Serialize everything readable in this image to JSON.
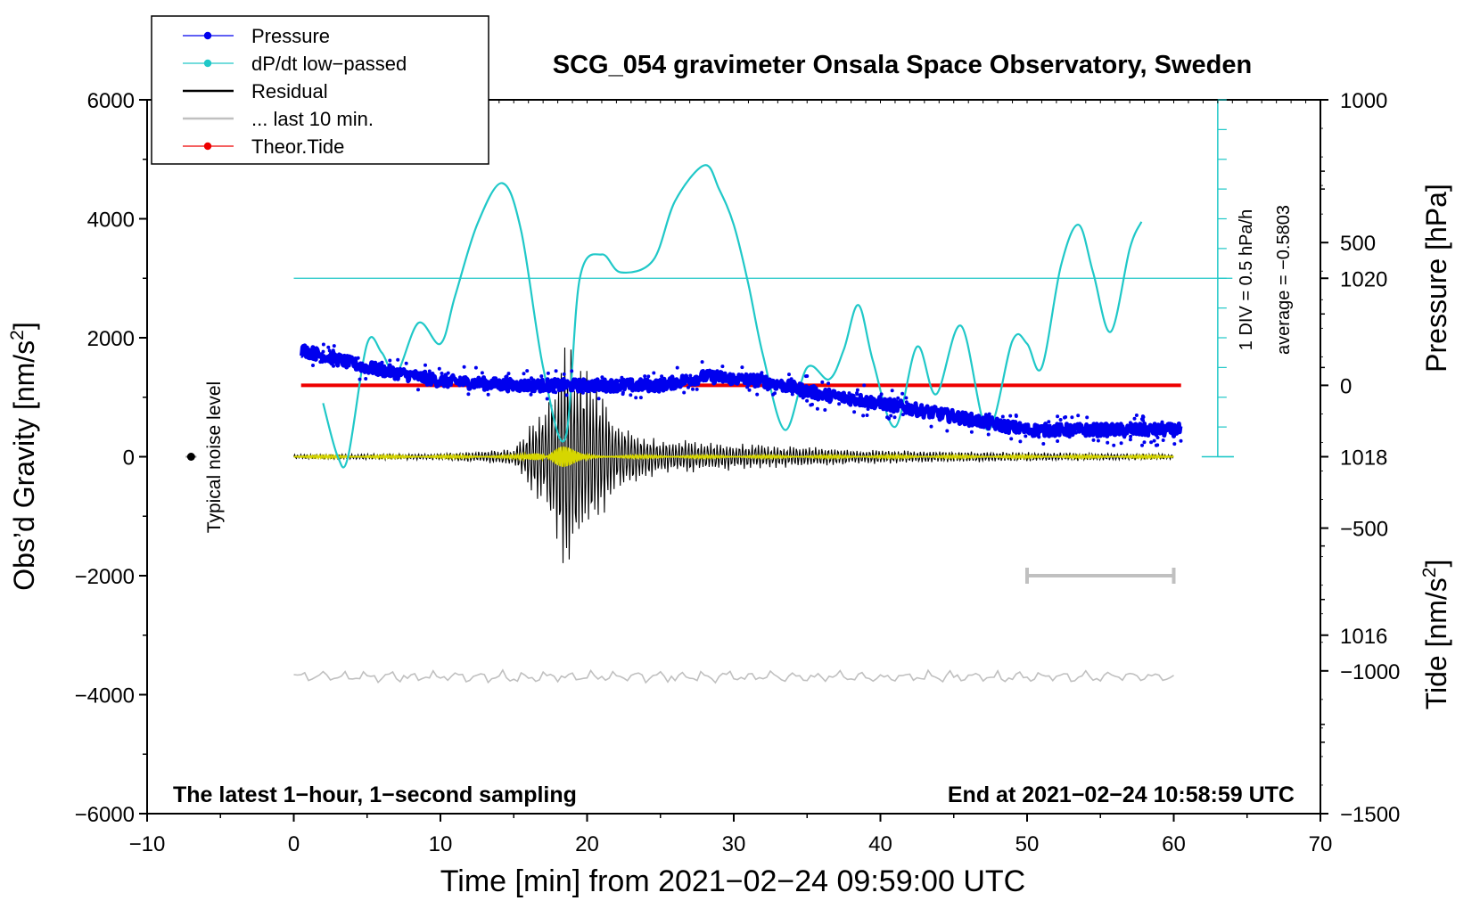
{
  "chart_data": {
    "type": "line",
    "title": "SCG_054 gravimeter Onsala Space Observatory, Sweden",
    "xlabel": "Time [min] from 2021−02−24 09:59:00 UTC",
    "ylabel_left": "Obs’d Gravity [nm/s²]",
    "ylabel_left_main": "Obs’d Gravity [nm/s",
    "ylabel_right_pressure": "Pressure [hPa]",
    "ylabel_right_tide_main": "Tide [nm/s",
    "superscript_two": "2",
    "unit_close": "]",
    "xlim": [
      -10,
      70
    ],
    "ylim_left": [
      -6000,
      6000
    ],
    "pressure_axis": {
      "ylim": [
        1014,
        1022
      ],
      "ticks": [
        1016,
        1018,
        1020
      ],
      "tick_labels": [
        "1016",
        "1018",
        "1020"
      ]
    },
    "tide_axis": {
      "ylim": [
        -1500,
        1000
      ],
      "ticks": [
        -1500,
        -1000,
        -500,
        0,
        500,
        1000
      ],
      "tick_labels": [
        "−1500",
        "−1000",
        "−500",
        "0",
        "500",
        "1000"
      ]
    },
    "x_ticks": [
      -10,
      0,
      10,
      20,
      30,
      40,
      50,
      60,
      70
    ],
    "x_tick_labels": [
      "−10",
      "0",
      "10",
      "20",
      "30",
      "40",
      "50",
      "60",
      "70"
    ],
    "y_ticks": [
      -6000,
      -4000,
      -2000,
      0,
      2000,
      4000,
      6000
    ],
    "y_tick_labels": [
      "−6000",
      "−4000",
      "−2000",
      "0",
      "2000",
      "4000",
      "6000"
    ],
    "legend": [
      {
        "name": "Pressure",
        "color": "#0000ee",
        "marker": true
      },
      {
        "name": "dP/dt low−passed",
        "color": "#20c8c8",
        "marker": true
      },
      {
        "name": "Residual",
        "color": "#000000",
        "marker": false
      },
      {
        "name": "... last 10 min.",
        "color": "#c0c0c0",
        "marker": false
      },
      {
        "name": "Theor.Tide",
        "color": "#ee0000",
        "marker": true
      }
    ],
    "legend_position": "top-left",
    "series": [
      {
        "name": "Pressure",
        "unit": "hPa",
        "x": [
          0.5,
          5,
          10,
          15,
          20,
          25,
          28,
          32,
          36,
          40,
          45,
          50,
          55,
          60.5
        ],
        "values": [
          1019.2,
          1019.0,
          1018.85,
          1018.8,
          1018.8,
          1018.8,
          1018.9,
          1018.85,
          1018.7,
          1018.6,
          1018.45,
          1018.3,
          1018.3,
          1018.3
        ]
      },
      {
        "name": "dP/dt low−passed",
        "unit": "nm/s2 plot scale",
        "x": [
          2,
          3,
          3.7,
          5,
          6,
          7,
          8.5,
          10,
          11,
          12.5,
          14.2,
          15.5,
          17,
          18.5,
          19.5,
          21,
          22.3,
          24.5,
          26,
          28,
          29,
          30,
          31,
          32,
          33.5,
          35,
          36.5,
          37.5,
          38.5,
          39.5,
          41,
          42.5,
          43.8,
          45.5,
          47.3,
          49,
          50,
          51,
          52.3,
          53.5,
          54.5,
          55.7,
          57,
          57.8
        ],
        "values": [
          900,
          0,
          0,
          1900,
          1750,
          1400,
          2250,
          1900,
          2700,
          3900,
          4600,
          3800,
          1500,
          300,
          3000,
          3400,
          3100,
          3300,
          4300,
          4900,
          4500,
          3900,
          2900,
          1700,
          450,
          1500,
          1300,
          1800,
          2550,
          1600,
          500,
          1850,
          1050,
          2200,
          450,
          1950,
          1900,
          1500,
          3200,
          3900,
          3100,
          2100,
          3500,
          3950
        ]
      },
      {
        "name": "Residual",
        "unit": "nm/s2",
        "x": [
          0,
          10,
          15,
          17,
          18.5,
          19,
          20,
          22,
          25,
          30,
          35,
          40,
          50,
          60
        ],
        "amplitude": [
          40,
          60,
          150,
          900,
          2000,
          2000,
          1500,
          600,
          300,
          250,
          180,
          120,
          80,
          50
        ]
      },
      {
        "name": "... last 10 min.",
        "unit": "nm/s2",
        "x": [
          50,
          60
        ],
        "values": [
          -2000,
          -2000
        ]
      },
      {
        "name": "Theor.Tide",
        "unit": "nm/s2",
        "x": [
          0.5,
          20,
          40,
          60.5
        ],
        "values": [
          0,
          0,
          0,
          0
        ]
      }
    ],
    "noise_marker": {
      "x": -7,
      "y": 0,
      "label": "Typical noise level"
    },
    "scale_bar": {
      "div_label": "1 DIV = 0.5 hPa/h",
      "average_label": "average = −0.5803",
      "reference_y": 3000
    },
    "annotations": {
      "bottom_left": "The latest 1−hour, 1−second sampling",
      "bottom_right": "End at 2021−02−24 10:58:59 UTC"
    },
    "grid": false
  }
}
